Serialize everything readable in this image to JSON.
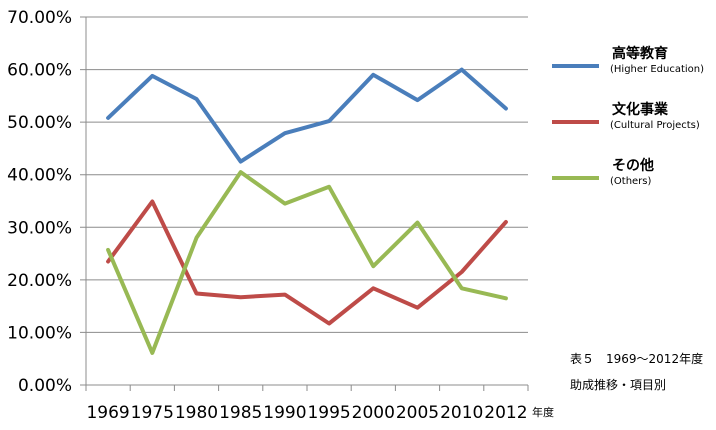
{
  "chart_data": {
    "type": "line",
    "categories": [
      "1969",
      "1975",
      "1980",
      "1985",
      "1990",
      "1995",
      "2000",
      "2005",
      "2010",
      "2012"
    ],
    "xlabel": "年度",
    "ylim": [
      0,
      70
    ],
    "y_ticks": [
      "0.00%",
      "10.00%",
      "20.00%",
      "30.00%",
      "40.00%",
      "50.00%",
      "60.00%",
      "70.00%"
    ],
    "grid": true,
    "legend_placement": "right",
    "series": [
      {
        "name": "高等教育",
        "name_en": "(Higher Education)",
        "color": "#4a7ebb",
        "values": [
          50.8,
          58.8,
          54.4,
          42.5,
          47.9,
          50.2,
          59.0,
          54.2,
          60.0,
          52.6
        ]
      },
      {
        "name": "文化事業",
        "name_en": "(Cultural Projects)",
        "color": "#be4b48",
        "values": [
          23.5,
          34.9,
          17.4,
          16.7,
          17.2,
          11.7,
          18.4,
          14.7,
          21.5,
          31.0
        ]
      },
      {
        "name": "その他",
        "name_en": "(Others)",
        "color": "#98b954",
        "values": [
          25.7,
          6.1,
          28.0,
          40.5,
          34.5,
          37.7,
          22.6,
          30.9,
          18.4,
          16.5
        ]
      }
    ]
  },
  "caption": {
    "line1": "表５　1969～2012年度",
    "line2": "助成推移・項目別"
  }
}
